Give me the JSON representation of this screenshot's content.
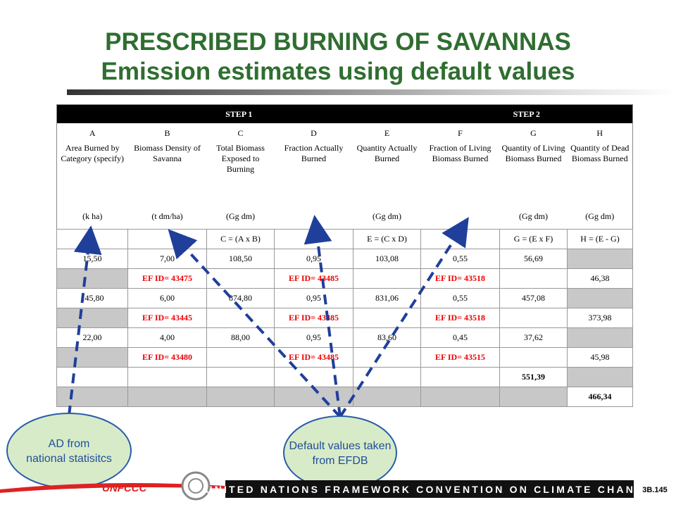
{
  "title": {
    "line1": "PRESCRIBED BURNING OF SAVANNAS",
    "line2": "Emission estimates using default values"
  },
  "table": {
    "steps": [
      "STEP 1",
      "STEP 2"
    ],
    "letters": [
      "A",
      "B",
      "C",
      "D",
      "E",
      "F",
      "G",
      "H"
    ],
    "descriptions": [
      "Area Burned by Category (specify)",
      "Biomass Density of Savanna",
      "Total Biomass Exposed to Burning",
      "Fraction Actually Burned",
      "Quantity Actually Burned",
      "Fraction of Living Biomass Burned",
      "Quantity of Living Biomass Burned",
      "Quantity of Dead Biomass Burned"
    ],
    "units": [
      "(k ha)",
      "(t dm/ha)",
      "(Gg dm)",
      null,
      "(Gg dm)",
      null,
      "(Gg dm)",
      "(Gg dm)"
    ],
    "formulas": [
      null,
      null,
      "C = (A x B)",
      null,
      "E = (C x D)",
      null,
      "G = (E x F)",
      "H = (E - G)"
    ],
    "rows": [
      [
        "15,50",
        "7,00",
        "108,50",
        "0,95",
        "103,08",
        "0,55",
        "56,69",
        null
      ],
      [
        null,
        "EF ID= 43475",
        null,
        "EF ID= 43485",
        null,
        "EF ID= 43518",
        null,
        "46,38"
      ],
      [
        "145,80",
        "6,00",
        "874,80",
        "0,95",
        "831,06",
        "0,55",
        "457,08",
        null
      ],
      [
        null,
        "EF ID= 43445",
        null,
        "EF ID= 43485",
        null,
        "EF ID= 43518",
        null,
        "373,98"
      ],
      [
        "22,00",
        "4,00",
        "88,00",
        "0,95",
        "83,60",
        "0,45",
        "37,62",
        null
      ],
      [
        null,
        "EF ID= 43480",
        null,
        "EF ID= 43485",
        null,
        "EF ID= 43515",
        null,
        "45,98"
      ],
      [
        null,
        null,
        null,
        null,
        null,
        null,
        "551,39",
        null
      ],
      [
        null,
        null,
        null,
        null,
        null,
        null,
        null,
        "466,34"
      ]
    ]
  },
  "callouts": [
    "AD from national statisitcs",
    "Default values taken from EFDB"
  ],
  "footer": {
    "logo": "UNFCCC",
    "banner": "UNITED NATIONS FRAMEWORK CONVENTION ON CLIMATE CHANGE",
    "page": "3B.145"
  }
}
